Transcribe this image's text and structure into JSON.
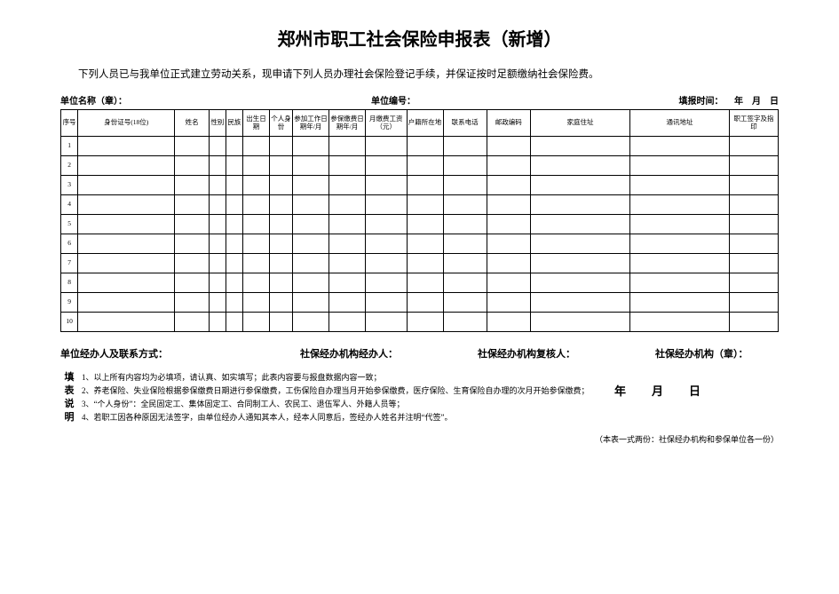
{
  "title": "郑州市职工社会保险申报表（新增）",
  "intro": "下列人员已与我单位正式建立劳动关系，现申请下列人员办理社会保险登记手续，并保证按时足额缴纳社会保险费。",
  "meta": {
    "unit_name_label": "单位名称（章）：",
    "unit_code_label": "单位编号：",
    "fill_time_label": "填报时间：",
    "fill_time_suffix": "年　月　日"
  },
  "table": {
    "columns": [
      "序号",
      "身份证号(18位)",
      "姓名",
      "性别",
      "民族",
      "出生日期",
      "个人身份",
      "参加工作日期年/月",
      "参保缴费日期年/月",
      "月缴费工资（元）",
      "户籍所在地",
      "联系电话",
      "邮政编码",
      "家庭住址",
      "通讯地址",
      "职工签字及指印"
    ],
    "rows": [
      1,
      2,
      3,
      4,
      5,
      6,
      7,
      8,
      9,
      10
    ]
  },
  "signatures": {
    "a": "单位经办人及联系方式：",
    "b": "社保经办机构经办人：",
    "c": "社保经办机构复核人：",
    "d": "社保经办机构（章）："
  },
  "notes_label": [
    "填",
    "表",
    "说",
    "明"
  ],
  "notes": [
    "1、以上所有内容均为必填项，请认真、如实填写；此表内容要与报盘数据内容一致；",
    "2、养老保险、失业保险根据参保缴费日期进行参保缴费，工伤保险自办理当月开始参保缴费，医疗保险、生育保险自办理的次月开始参保缴费；",
    "3、“个人身份”：全民固定工、集体固定工、合同制工人、农民工、退伍军人、外籍人员等；",
    "4、若职工因各种原因无法签字，由单位经办人通知其本人，经本人同意后，签经办人姓名并注明“代签”。"
  ],
  "big_date": "年　月　日",
  "footnote": "（本表一式两份：社保经办机构和参保单位各一份）",
  "style": {
    "border_color": "#000000",
    "background": "#ffffff",
    "title_fontsize": 20,
    "body_fontsize": 9
  }
}
